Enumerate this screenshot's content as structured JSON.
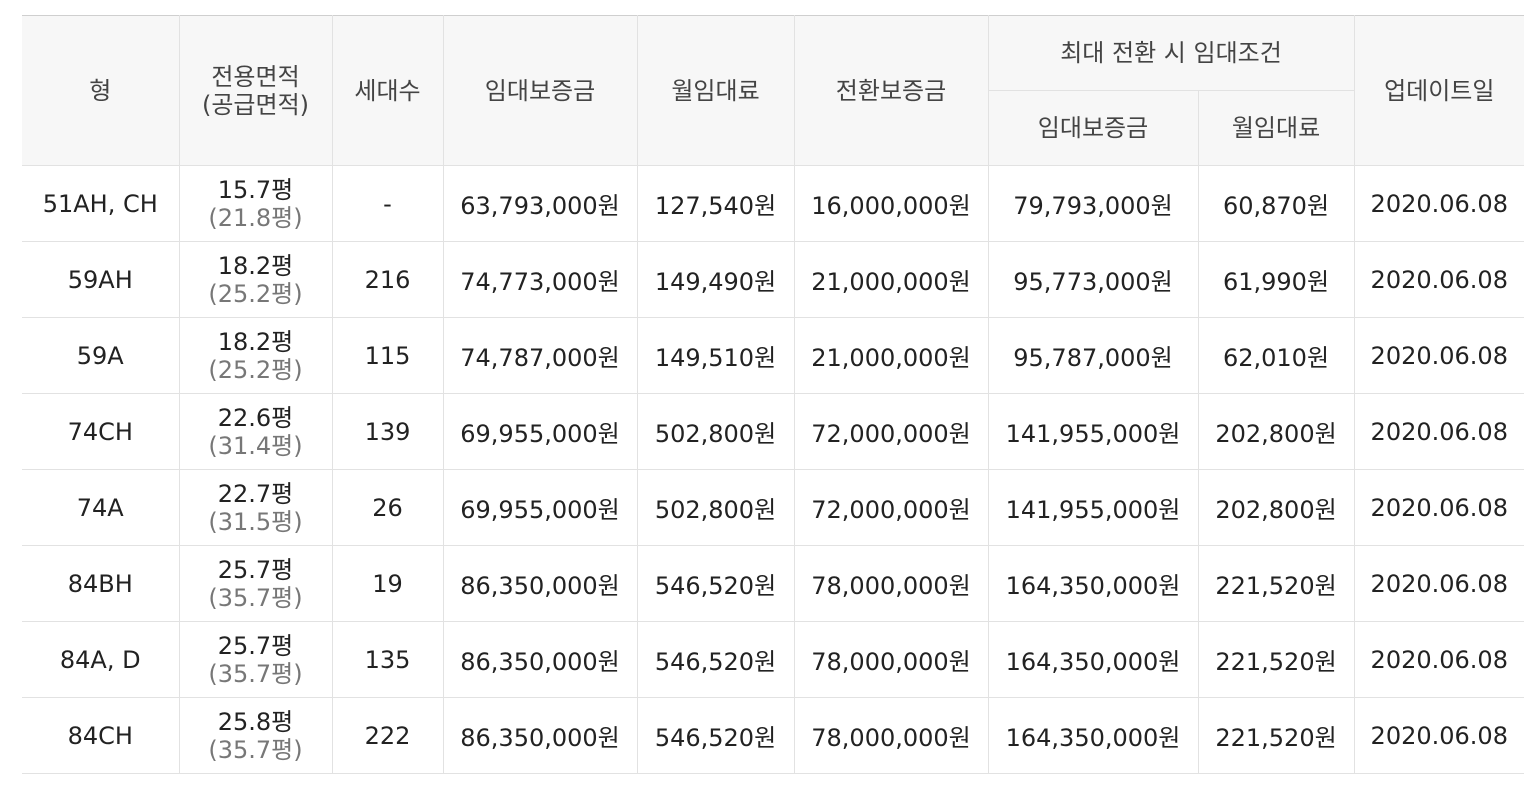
{
  "header": {
    "type": "형",
    "area_line1": "전용면적",
    "area_line2": "(공급면적)",
    "households": "세대수",
    "deposit": "임대보증금",
    "monthly_rent": "월임대료",
    "conversion_deposit": "전환보증금",
    "max_conversion_group": "최대 전환 시 임대조건",
    "max_deposit": "임대보증금",
    "max_monthly_rent": "월임대료",
    "updated": "업데이트일"
  },
  "rows": [
    {
      "type": "51AH, CH",
      "area": "15.7평",
      "supply_area": "(21.8평)",
      "households": "-",
      "deposit": "63,793,000원",
      "monthly_rent": "127,540원",
      "conversion_deposit": "16,000,000원",
      "max_deposit": "79,793,000원",
      "max_monthly_rent": "60,870원",
      "updated": "2020.06.08"
    },
    {
      "type": "59AH",
      "area": "18.2평",
      "supply_area": "(25.2평)",
      "households": "216",
      "deposit": "74,773,000원",
      "monthly_rent": "149,490원",
      "conversion_deposit": "21,000,000원",
      "max_deposit": "95,773,000원",
      "max_monthly_rent": "61,990원",
      "updated": "2020.06.08"
    },
    {
      "type": "59A",
      "area": "18.2평",
      "supply_area": "(25.2평)",
      "households": "115",
      "deposit": "74,787,000원",
      "monthly_rent": "149,510원",
      "conversion_deposit": "21,000,000원",
      "max_deposit": "95,787,000원",
      "max_monthly_rent": "62,010원",
      "updated": "2020.06.08"
    },
    {
      "type": "74CH",
      "area": "22.6평",
      "supply_area": "(31.4평)",
      "households": "139",
      "deposit": "69,955,000원",
      "monthly_rent": "502,800원",
      "conversion_deposit": "72,000,000원",
      "max_deposit": "141,955,000원",
      "max_monthly_rent": "202,800원",
      "updated": "2020.06.08"
    },
    {
      "type": "74A",
      "area": "22.7평",
      "supply_area": "(31.5평)",
      "households": "26",
      "deposit": "69,955,000원",
      "monthly_rent": "502,800원",
      "conversion_deposit": "72,000,000원",
      "max_deposit": "141,955,000원",
      "max_monthly_rent": "202,800원",
      "updated": "2020.06.08"
    },
    {
      "type": "84BH",
      "area": "25.7평",
      "supply_area": "(35.7평)",
      "households": "19",
      "deposit": "86,350,000원",
      "monthly_rent": "546,520원",
      "conversion_deposit": "78,000,000원",
      "max_deposit": "164,350,000원",
      "max_monthly_rent": "221,520원",
      "updated": "2020.06.08"
    },
    {
      "type": "84A, D",
      "area": "25.7평",
      "supply_area": "(35.7평)",
      "households": "135",
      "deposit": "86,350,000원",
      "monthly_rent": "546,520원",
      "conversion_deposit": "78,000,000원",
      "max_deposit": "164,350,000원",
      "max_monthly_rent": "221,520원",
      "updated": "2020.06.08"
    },
    {
      "type": "84CH",
      "area": "25.8평",
      "supply_area": "(35.7평)",
      "households": "222",
      "deposit": "86,350,000원",
      "monthly_rent": "546,520원",
      "conversion_deposit": "78,000,000원",
      "max_deposit": "164,350,000원",
      "max_monthly_rent": "221,520원",
      "updated": "2020.06.08"
    }
  ],
  "colors": {
    "header_bg": "#f7f7f7",
    "border": "#e2e2e2",
    "text": "#222222",
    "sub_text": "#777777"
  }
}
